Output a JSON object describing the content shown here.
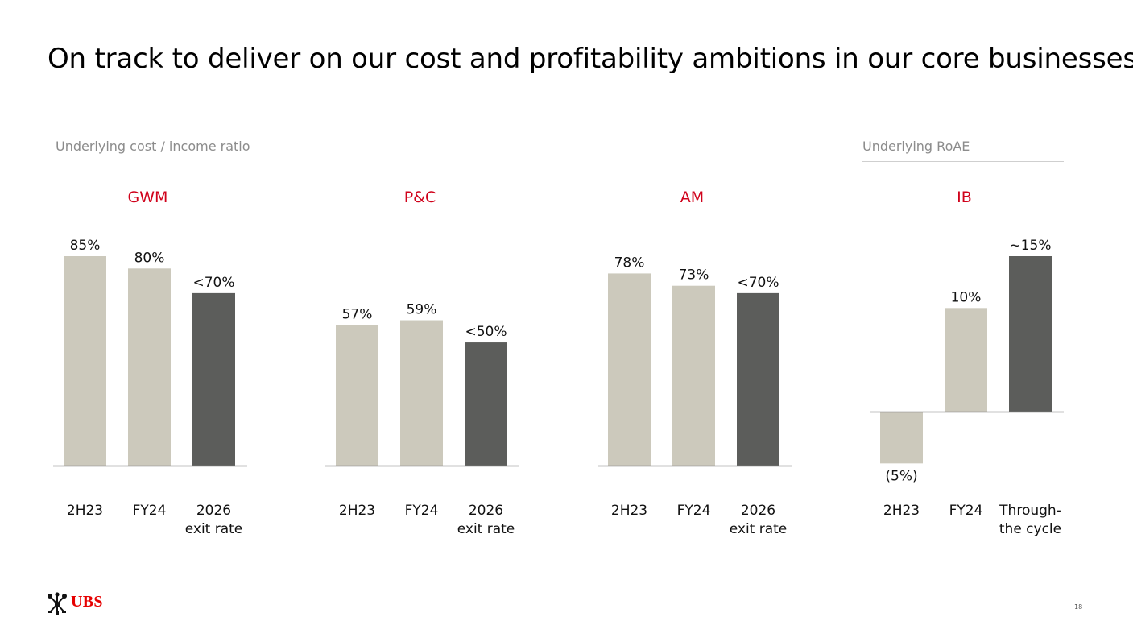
{
  "title": "On track to deliver on our cost and profitability ambitions in our core businesses",
  "sections": {
    "cost_income": "Underlying cost / income ratio",
    "roae": "Underlying RoAE"
  },
  "colors": {
    "light_bar": "#ccc9bc",
    "dark_bar": "#5c5d5b",
    "panel_title": "#d0021b",
    "section_label": "#8c8c8c",
    "axis": "#888888"
  },
  "chart_data": [
    {
      "type": "bar",
      "title": "GWM",
      "categories": [
        "2H23",
        "FY24",
        "2026\nexit rate"
      ],
      "values": [
        85,
        80,
        70
      ],
      "value_labels": [
        "85%",
        "80%",
        "<70%"
      ],
      "highlight": [
        false,
        false,
        true
      ],
      "ylim": [
        0,
        85
      ]
    },
    {
      "type": "bar",
      "title": "P&C",
      "categories": [
        "2H23",
        "FY24",
        "2026\nexit rate"
      ],
      "values": [
        57,
        59,
        50
      ],
      "value_labels": [
        "57%",
        "59%",
        "<50%"
      ],
      "highlight": [
        false,
        false,
        true
      ],
      "ylim": [
        0,
        85
      ]
    },
    {
      "type": "bar",
      "title": "AM",
      "categories": [
        "2H23",
        "FY24",
        "2026\nexit rate"
      ],
      "values": [
        78,
        73,
        70
      ],
      "value_labels": [
        "78%",
        "73%",
        "<70%"
      ],
      "highlight": [
        false,
        false,
        true
      ],
      "ylim": [
        0,
        85
      ]
    },
    {
      "type": "bar",
      "title": "IB",
      "categories": [
        "2H23",
        "FY24",
        "Through-\nthe cycle"
      ],
      "values": [
        -5,
        10,
        15
      ],
      "value_labels": [
        "(5%)",
        "10%",
        "~15%"
      ],
      "highlight": [
        false,
        false,
        true
      ],
      "ylim": [
        -5,
        15
      ]
    }
  ],
  "footer": {
    "brand": "UBS",
    "page_number": "18"
  }
}
